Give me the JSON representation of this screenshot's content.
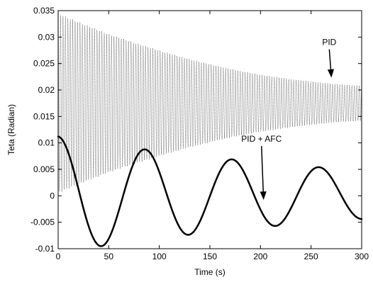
{
  "chart_data": {
    "type": "line",
    "title": "",
    "xlabel": "Time (s)",
    "ylabel": "Teta (Radian)",
    "xlim": [
      0,
      300
    ],
    "ylim": [
      -0.01,
      0.035
    ],
    "xticks": [
      0,
      50,
      100,
      150,
      200,
      250,
      300
    ],
    "xtick_labels": [
      "0",
      "50",
      "100",
      "150",
      "200",
      "250",
      "300"
    ],
    "yticks": [
      -0.01,
      -0.005,
      0,
      0.005,
      0.01,
      0.015,
      0.02,
      0.025,
      0.03,
      0.035
    ],
    "ytick_labels": [
      "-0.01",
      "-0.005",
      "0",
      "0.005",
      "0.01",
      "0.015",
      "0.02",
      "0.025",
      "0.03",
      "0.035"
    ],
    "grid": false,
    "box": true,
    "series": [
      {
        "name": "",
        "style": "thin dotted black",
        "color": "#000000",
        "description_in_image": "PID",
        "model": {
          "kind": "dense_oscillation_envelope",
          "center": 0.0175,
          "half_amplitude_start": 0.0172,
          "half_amplitude_end": 0.0037,
          "period_s": 2.4
        },
        "x": [
          0,
          25,
          50,
          75,
          100,
          125,
          150,
          175,
          200,
          225,
          250,
          275,
          300
        ],
        "upper_envelope": [
          0.0345,
          0.0325,
          0.0306,
          0.029,
          0.0275,
          0.0261,
          0.0249,
          0.0238,
          0.0229,
          0.0222,
          0.0216,
          0.0211,
          0.0208
        ],
        "lower_envelope": [
          0.0005,
          0.0025,
          0.0044,
          0.006,
          0.0075,
          0.0089,
          0.0101,
          0.0112,
          0.0121,
          0.0128,
          0.0134,
          0.0139,
          0.0142
        ]
      },
      {
        "name": "",
        "style": "thick solid black",
        "color": "#000000",
        "description_in_image": "PID + AFC",
        "x": [
          0,
          42,
          85,
          128,
          170,
          214,
          258,
          300
        ],
        "y": [
          0.0112,
          -0.0098,
          0.0085,
          -0.007,
          0.0062,
          -0.005,
          0.0046,
          -0.0037
        ],
        "model": {
          "kind": "damped_cosine",
          "offset": 0.0002,
          "amplitude": 0.011,
          "decay_per_s": 0.0029,
          "period_s": 86
        }
      }
    ],
    "annotations": [
      {
        "text": "PID",
        "x": 268,
        "y": 0.0285,
        "arrow_to": [
          270,
          0.0226
        ]
      },
      {
        "text": "PID + AFC",
        "x": 201,
        "y": 0.0102,
        "arrow_to": [
          203,
          -0.0005
        ]
      }
    ]
  }
}
